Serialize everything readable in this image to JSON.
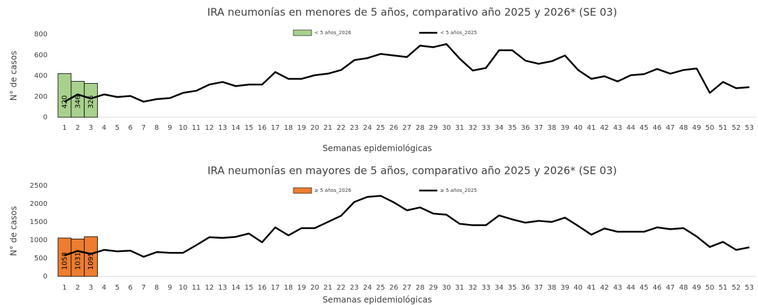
{
  "chart_data": [
    {
      "type": "combo",
      "title": "IRA neumonías en menores de 5 años, comparativo año 2025 y 2026* (SE 03)",
      "x_label": "Semanas epidemiológicas",
      "y_label": "N° de casos",
      "categories": [
        1,
        2,
        3,
        4,
        5,
        6,
        7,
        8,
        9,
        10,
        11,
        12,
        13,
        14,
        15,
        16,
        17,
        18,
        19,
        20,
        21,
        22,
        23,
        24,
        25,
        26,
        27,
        28,
        29,
        30,
        31,
        32,
        33,
        34,
        35,
        36,
        37,
        38,
        39,
        40,
        41,
        42,
        43,
        44,
        45,
        46,
        47,
        48,
        49,
        50,
        51,
        52,
        53
      ],
      "series": [
        {
          "name": "< 5 años_2026",
          "type": "bar",
          "color": "#a9d18e",
          "values": [
            420,
            346,
            326,
            null,
            null,
            null,
            null,
            null,
            null,
            null,
            null,
            null,
            null,
            null,
            null,
            null,
            null,
            null,
            null,
            null,
            null,
            null,
            null,
            null,
            null,
            null,
            null,
            null,
            null,
            null,
            null,
            null,
            null,
            null,
            null,
            null,
            null,
            null,
            null,
            null,
            null,
            null,
            null,
            null,
            null,
            null,
            null,
            null,
            null,
            null,
            null,
            null,
            null
          ]
        },
        {
          "name": "< 5 años_2025",
          "type": "line",
          "color": "#000000",
          "values": [
            150,
            220,
            180,
            220,
            195,
            205,
            150,
            175,
            185,
            235,
            255,
            315,
            340,
            300,
            315,
            315,
            435,
            370,
            370,
            405,
            420,
            455,
            550,
            570,
            610,
            595,
            580,
            690,
            675,
            705,
            565,
            450,
            475,
            645,
            645,
            545,
            515,
            540,
            595,
            455,
            370,
            395,
            345,
            405,
            415,
            465,
            420,
            455,
            470,
            235,
            340,
            280,
            290
          ]
        }
      ],
      "ylim": [
        0,
        800
      ],
      "yticks": [
        0,
        200,
        400,
        600,
        800
      ]
    },
    {
      "type": "combo",
      "title": "IRA neumonías en mayores de 5 años, comparativo año 2025 y 2026* (SE 03)",
      "x_label": "Semanas epidemiológicas",
      "y_label": "N° de casos",
      "categories": [
        1,
        2,
        3,
        4,
        5,
        6,
        7,
        8,
        9,
        10,
        11,
        12,
        13,
        14,
        15,
        16,
        17,
        18,
        19,
        20,
        21,
        22,
        23,
        24,
        25,
        26,
        27,
        28,
        29,
        30,
        31,
        32,
        33,
        34,
        35,
        36,
        37,
        38,
        39,
        40,
        41,
        42,
        43,
        44,
        45,
        46,
        47,
        48,
        49,
        50,
        51,
        52,
        53
      ],
      "series": [
        {
          "name": "≥ 5 años_2026",
          "type": "bar",
          "color": "#ed7d31",
          "values": [
            1058,
            1031,
            1095,
            null,
            null,
            null,
            null,
            null,
            null,
            null,
            null,
            null,
            null,
            null,
            null,
            null,
            null,
            null,
            null,
            null,
            null,
            null,
            null,
            null,
            null,
            null,
            null,
            null,
            null,
            null,
            null,
            null,
            null,
            null,
            null,
            null,
            null,
            null,
            null,
            null,
            null,
            null,
            null,
            null,
            null,
            null,
            null,
            null,
            null,
            null,
            null,
            null,
            null
          ]
        },
        {
          "name": "≥ 5 años_2025",
          "type": "line",
          "color": "#000000",
          "values": [
            580,
            700,
            620,
            730,
            690,
            710,
            540,
            670,
            650,
            650,
            860,
            1080,
            1060,
            1090,
            1180,
            940,
            1350,
            1130,
            1330,
            1330,
            1500,
            1670,
            2050,
            2190,
            2220,
            2040,
            1820,
            1900,
            1730,
            1700,
            1450,
            1410,
            1410,
            1680,
            1570,
            1480,
            1530,
            1500,
            1620,
            1390,
            1150,
            1320,
            1230,
            1230,
            1230,
            1350,
            1300,
            1330,
            1100,
            810,
            950,
            730,
            800
          ]
        }
      ],
      "ylim": [
        0,
        2500
      ],
      "yticks": [
        0,
        500,
        1000,
        1500,
        2000,
        2500
      ]
    }
  ]
}
